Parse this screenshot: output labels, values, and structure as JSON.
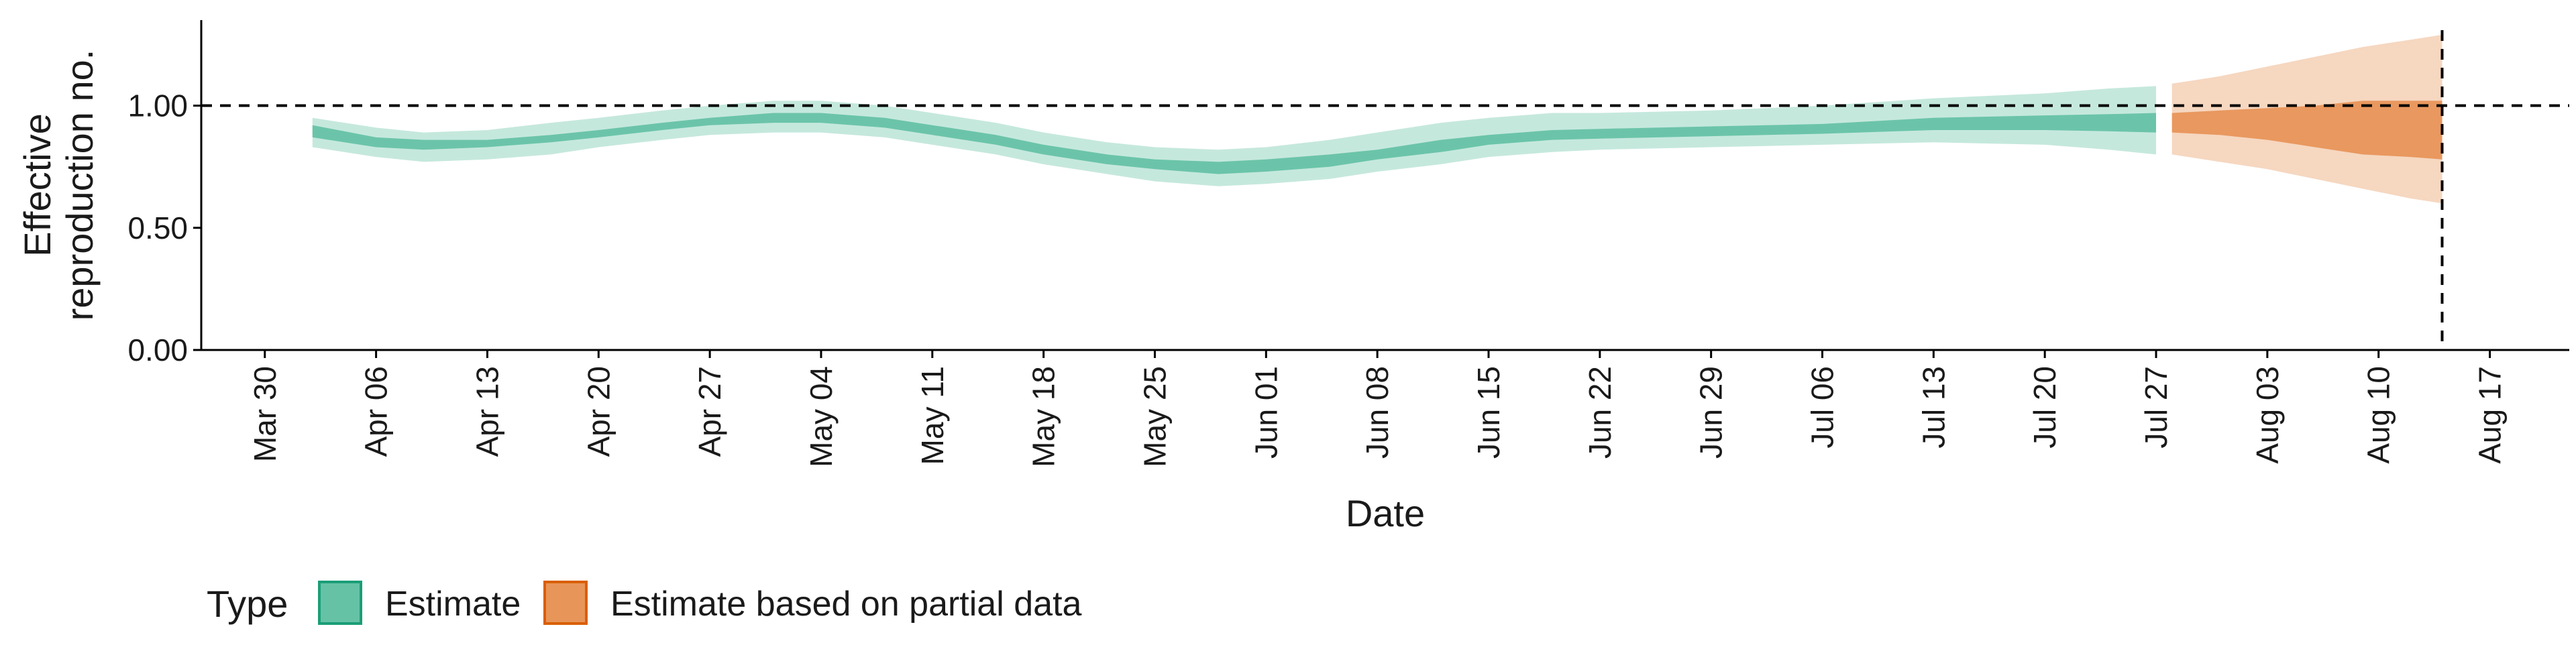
{
  "chart_data": {
    "type": "area",
    "xlabel": "Date",
    "ylabel": [
      "Effective",
      "reproduction no."
    ],
    "ylim": [
      0,
      1.35
    ],
    "xlim": [
      "2020-03-26",
      "2020-08-22"
    ],
    "y_ticks": [
      {
        "value": 0.0,
        "label": "0.00"
      },
      {
        "value": 0.5,
        "label": "0.50"
      },
      {
        "value": 1.0,
        "label": "1.00"
      }
    ],
    "x_ticks": [
      {
        "date": "2020-03-30",
        "label": "Mar 30"
      },
      {
        "date": "2020-04-06",
        "label": "Apr 06"
      },
      {
        "date": "2020-04-13",
        "label": "Apr 13"
      },
      {
        "date": "2020-04-20",
        "label": "Apr 20"
      },
      {
        "date": "2020-04-27",
        "label": "Apr 27"
      },
      {
        "date": "2020-05-04",
        "label": "May 04"
      },
      {
        "date": "2020-05-11",
        "label": "May 11"
      },
      {
        "date": "2020-05-18",
        "label": "May 18"
      },
      {
        "date": "2020-05-25",
        "label": "May 25"
      },
      {
        "date": "2020-06-01",
        "label": "Jun 01"
      },
      {
        "date": "2020-06-08",
        "label": "Jun 08"
      },
      {
        "date": "2020-06-15",
        "label": "Jun 15"
      },
      {
        "date": "2020-06-22",
        "label": "Jun 22"
      },
      {
        "date": "2020-06-29",
        "label": "Jun 29"
      },
      {
        "date": "2020-07-06",
        "label": "Jul 06"
      },
      {
        "date": "2020-07-13",
        "label": "Jul 13"
      },
      {
        "date": "2020-07-20",
        "label": "Jul 20"
      },
      {
        "date": "2020-07-27",
        "label": "Jul 27"
      },
      {
        "date": "2020-08-03",
        "label": "Aug 03"
      },
      {
        "date": "2020-08-10",
        "label": "Aug 10"
      },
      {
        "date": "2020-08-17",
        "label": "Aug 17"
      }
    ],
    "reference_lines": {
      "horizontal_y": 1.0,
      "vertical_date": "2020-08-14",
      "style": "dashed"
    },
    "grid": false,
    "legend": {
      "title": "Type",
      "position": "bottom-left",
      "items": [
        {
          "label": "Estimate",
          "fill": "#66c2a5",
          "border": "#1b9e77"
        },
        {
          "label": "Estimate based on partial data",
          "fill": "#e8955a",
          "border": "#d95f02"
        }
      ]
    },
    "series": [
      {
        "name": "Estimate",
        "color": "#1b9e77",
        "ribbon_color": "#66c2a5",
        "points": [
          {
            "date": "2020-04-02",
            "lower90": 0.83,
            "lower50": 0.87,
            "median": 0.89,
            "upper50": 0.92,
            "upper90": 0.95
          },
          {
            "date": "2020-04-06",
            "lower90": 0.79,
            "lower50": 0.83,
            "median": 0.85,
            "upper50": 0.87,
            "upper90": 0.91
          },
          {
            "date": "2020-04-09",
            "lower90": 0.77,
            "lower50": 0.82,
            "median": 0.84,
            "upper50": 0.86,
            "upper90": 0.89
          },
          {
            "date": "2020-04-13",
            "lower90": 0.78,
            "lower50": 0.83,
            "median": 0.845,
            "upper50": 0.86,
            "upper90": 0.9
          },
          {
            "date": "2020-04-17",
            "lower90": 0.8,
            "lower50": 0.85,
            "median": 0.865,
            "upper50": 0.88,
            "upper90": 0.93
          },
          {
            "date": "2020-04-20",
            "lower90": 0.83,
            "lower50": 0.87,
            "median": 0.885,
            "upper50": 0.9,
            "upper90": 0.95
          },
          {
            "date": "2020-04-24",
            "lower90": 0.86,
            "lower50": 0.9,
            "median": 0.915,
            "upper50": 0.93,
            "upper90": 0.98
          },
          {
            "date": "2020-04-27",
            "lower90": 0.88,
            "lower50": 0.92,
            "median": 0.935,
            "upper50": 0.95,
            "upper90": 1.0
          },
          {
            "date": "2020-05-01",
            "lower90": 0.89,
            "lower50": 0.93,
            "median": 0.95,
            "upper50": 0.97,
            "upper90": 1.02
          },
          {
            "date": "2020-05-04",
            "lower90": 0.89,
            "lower50": 0.93,
            "median": 0.95,
            "upper50": 0.97,
            "upper90": 1.02
          },
          {
            "date": "2020-05-08",
            "lower90": 0.87,
            "lower50": 0.91,
            "median": 0.93,
            "upper50": 0.95,
            "upper90": 1.0
          },
          {
            "date": "2020-05-11",
            "lower90": 0.84,
            "lower50": 0.88,
            "median": 0.9,
            "upper50": 0.92,
            "upper90": 0.97
          },
          {
            "date": "2020-05-15",
            "lower90": 0.8,
            "lower50": 0.84,
            "median": 0.86,
            "upper50": 0.88,
            "upper90": 0.93
          },
          {
            "date": "2020-05-18",
            "lower90": 0.76,
            "lower50": 0.8,
            "median": 0.82,
            "upper50": 0.84,
            "upper90": 0.89
          },
          {
            "date": "2020-05-22",
            "lower90": 0.72,
            "lower50": 0.76,
            "median": 0.78,
            "upper50": 0.8,
            "upper90": 0.85
          },
          {
            "date": "2020-05-25",
            "lower90": 0.69,
            "lower50": 0.74,
            "median": 0.76,
            "upper50": 0.78,
            "upper90": 0.83
          },
          {
            "date": "2020-05-29",
            "lower90": 0.67,
            "lower50": 0.72,
            "median": 0.745,
            "upper50": 0.77,
            "upper90": 0.82
          },
          {
            "date": "2020-06-01",
            "lower90": 0.68,
            "lower50": 0.73,
            "median": 0.755,
            "upper50": 0.78,
            "upper90": 0.83
          },
          {
            "date": "2020-06-05",
            "lower90": 0.7,
            "lower50": 0.75,
            "median": 0.775,
            "upper50": 0.8,
            "upper90": 0.86
          },
          {
            "date": "2020-06-08",
            "lower90": 0.73,
            "lower50": 0.78,
            "median": 0.8,
            "upper50": 0.82,
            "upper90": 0.89
          },
          {
            "date": "2020-06-12",
            "lower90": 0.76,
            "lower50": 0.81,
            "median": 0.83,
            "upper50": 0.86,
            "upper90": 0.93
          },
          {
            "date": "2020-06-15",
            "lower90": 0.79,
            "lower50": 0.84,
            "median": 0.86,
            "upper50": 0.88,
            "upper90": 0.95
          },
          {
            "date": "2020-06-19",
            "lower90": 0.81,
            "lower50": 0.86,
            "median": 0.88,
            "upper50": 0.9,
            "upper90": 0.97
          },
          {
            "date": "2020-06-22",
            "lower90": 0.82,
            "lower50": 0.865,
            "median": 0.885,
            "upper50": 0.905,
            "upper90": 0.97
          },
          {
            "date": "2020-06-29",
            "lower90": 0.83,
            "lower50": 0.875,
            "median": 0.895,
            "upper50": 0.915,
            "upper90": 0.98
          },
          {
            "date": "2020-07-06",
            "lower90": 0.84,
            "lower50": 0.885,
            "median": 0.905,
            "upper50": 0.925,
            "upper90": 1.0
          },
          {
            "date": "2020-07-13",
            "lower90": 0.85,
            "lower50": 0.9,
            "median": 0.925,
            "upper50": 0.95,
            "upper90": 1.03
          },
          {
            "date": "2020-07-20",
            "lower90": 0.84,
            "lower50": 0.9,
            "median": 0.93,
            "upper50": 0.96,
            "upper90": 1.05
          },
          {
            "date": "2020-07-24",
            "lower90": 0.82,
            "lower50": 0.895,
            "median": 0.93,
            "upper50": 0.965,
            "upper90": 1.07
          },
          {
            "date": "2020-07-27",
            "lower90": 0.8,
            "lower50": 0.89,
            "median": 0.93,
            "upper50": 0.97,
            "upper90": 1.08
          }
        ]
      },
      {
        "name": "Estimate based on partial data",
        "color": "#d95f02",
        "ribbon_color": "#e8955a",
        "points": [
          {
            "date": "2020-07-28",
            "lower90": 0.8,
            "lower50": 0.89,
            "median": 0.93,
            "upper50": 0.97,
            "upper90": 1.09
          },
          {
            "date": "2020-07-31",
            "lower90": 0.77,
            "lower50": 0.88,
            "median": 0.925,
            "upper50": 0.98,
            "upper90": 1.12
          },
          {
            "date": "2020-08-03",
            "lower90": 0.74,
            "lower50": 0.86,
            "median": 0.92,
            "upper50": 0.99,
            "upper90": 1.16
          },
          {
            "date": "2020-08-06",
            "lower90": 0.7,
            "lower50": 0.83,
            "median": 0.91,
            "upper50": 1.0,
            "upper90": 1.2
          },
          {
            "date": "2020-08-09",
            "lower90": 0.66,
            "lower50": 0.8,
            "median": 0.9,
            "upper50": 1.02,
            "upper90": 1.24
          },
          {
            "date": "2020-08-12",
            "lower90": 0.62,
            "lower50": 0.79,
            "median": 0.9,
            "upper50": 1.02,
            "upper90": 1.27
          },
          {
            "date": "2020-08-14",
            "lower90": 0.6,
            "lower50": 0.78,
            "median": 0.9,
            "upper50": 1.02,
            "upper90": 1.29
          }
        ]
      }
    ]
  }
}
